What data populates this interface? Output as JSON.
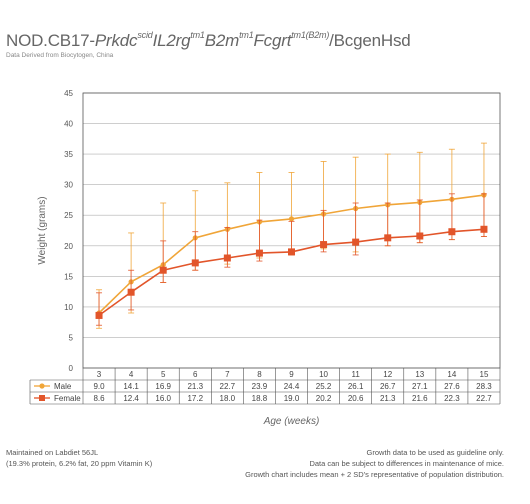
{
  "header": {
    "title_prefix": "NOD.CB17-",
    "t1": "Prkdc",
    "s1": "scid",
    "t2": "IL2rg",
    "s2": "tm1",
    "t3": "B2m",
    "s3": "tm1",
    "t4": "Fcgrt",
    "s4": "tm1(B2m)",
    "suffix": "/BcgenHsd",
    "subtitle": "Data Derived from Biocytogen, China"
  },
  "footer": {
    "left": [
      "Maintained on Labdiet 56JL",
      "(19.3% protein, 6.2% fat, 20 ppm Vitamin K)"
    ],
    "right": [
      "Growth data to be used as guideline only.",
      "Data can be subject to differences in maintenance of mice.",
      "Growth chart includes mean + 2 SD's representative of population distribution."
    ]
  },
  "colors": {
    "male": "#F0A538",
    "female": "#E2552A",
    "grid": "#b0b0b0",
    "axis": "#555555"
  },
  "chart_data": {
    "type": "line",
    "ylabel": "Weight (grams)",
    "xlabel": "Age (weeks)",
    "ylim": [
      0,
      45
    ],
    "yticks": [
      0,
      5,
      10,
      15,
      20,
      25,
      30,
      35,
      40,
      45
    ],
    "grid": true,
    "x": [
      3,
      4,
      5,
      6,
      7,
      8,
      9,
      10,
      11,
      12,
      13,
      14,
      15
    ],
    "series": [
      {
        "name": "Male",
        "marker": "circle",
        "values": [
          9.0,
          14.1,
          16.9,
          21.3,
          22.7,
          23.9,
          24.4,
          25.2,
          26.1,
          26.7,
          27.1,
          27.6,
          28.3
        ],
        "error_upper": [
          12.8,
          22.1,
          27.0,
          29.0,
          30.3,
          32.0,
          32.0,
          33.8,
          34.5,
          35.0,
          35.3,
          35.8,
          36.8
        ],
        "error_lower": [
          6.5,
          9.0,
          14.0,
          16.0,
          17.0,
          18.0,
          18.5,
          19.5,
          19.0,
          20.0,
          20.5,
          21.0,
          21.5
        ]
      },
      {
        "name": "Female",
        "marker": "square",
        "values": [
          8.6,
          12.4,
          16.0,
          17.2,
          18.0,
          18.8,
          19.0,
          20.2,
          20.6,
          21.3,
          21.6,
          22.3,
          22.7
        ],
        "error_upper": [
          12.3,
          16.0,
          20.8,
          22.3,
          23.0,
          24.2,
          24.0,
          25.8,
          27.0,
          27.0,
          27.5,
          28.5,
          28.5
        ],
        "error_lower": [
          7.0,
          9.5,
          14.0,
          16.0,
          16.5,
          17.5,
          18.5,
          19.0,
          18.5,
          20.0,
          20.5,
          21.0,
          21.5
        ]
      }
    ]
  }
}
